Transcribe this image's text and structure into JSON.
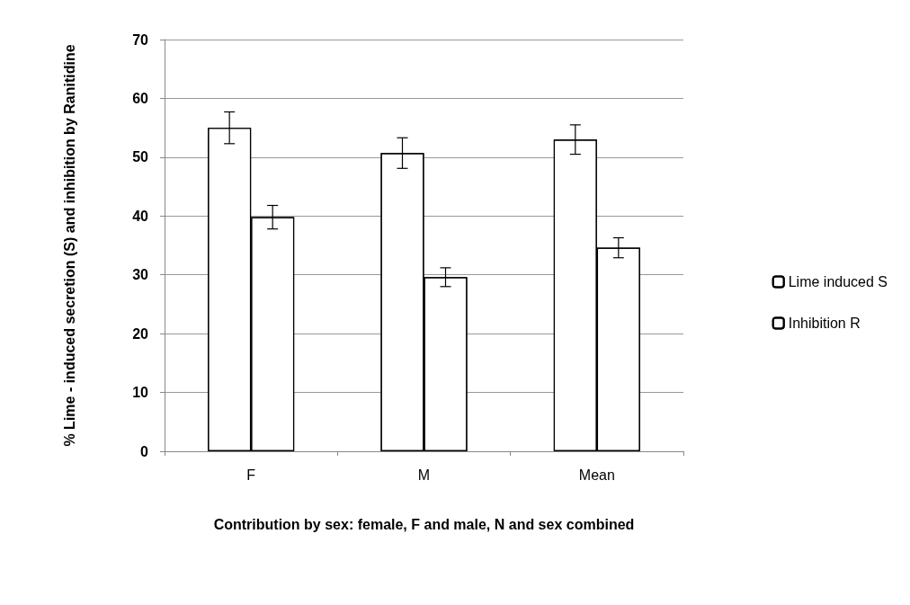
{
  "chart_data": {
    "type": "bar",
    "xlabel": "Contribution by sex: female, F and male, N and sex combined",
    "ylabel": "% Lime - induced secretion (S) and inhibition by Ranitidine",
    "categories": [
      "F",
      "M",
      "Mean"
    ],
    "series": [
      {
        "name": "Lime induced S",
        "color": "#ffffff",
        "values": [
          55,
          50.7,
          53
        ],
        "errors": [
          2.7,
          2.6,
          2.5
        ]
      },
      {
        "name": "Inhibition R",
        "color": "#ffffff",
        "values": [
          39.8,
          29.6,
          34.6
        ],
        "errors": [
          2,
          1.6,
          1.7
        ]
      }
    ],
    "ylim": [
      0,
      70
    ],
    "yticks": [
      0,
      10,
      20,
      30,
      40,
      50,
      60,
      70
    ],
    "grid": "y",
    "legend": "right"
  }
}
